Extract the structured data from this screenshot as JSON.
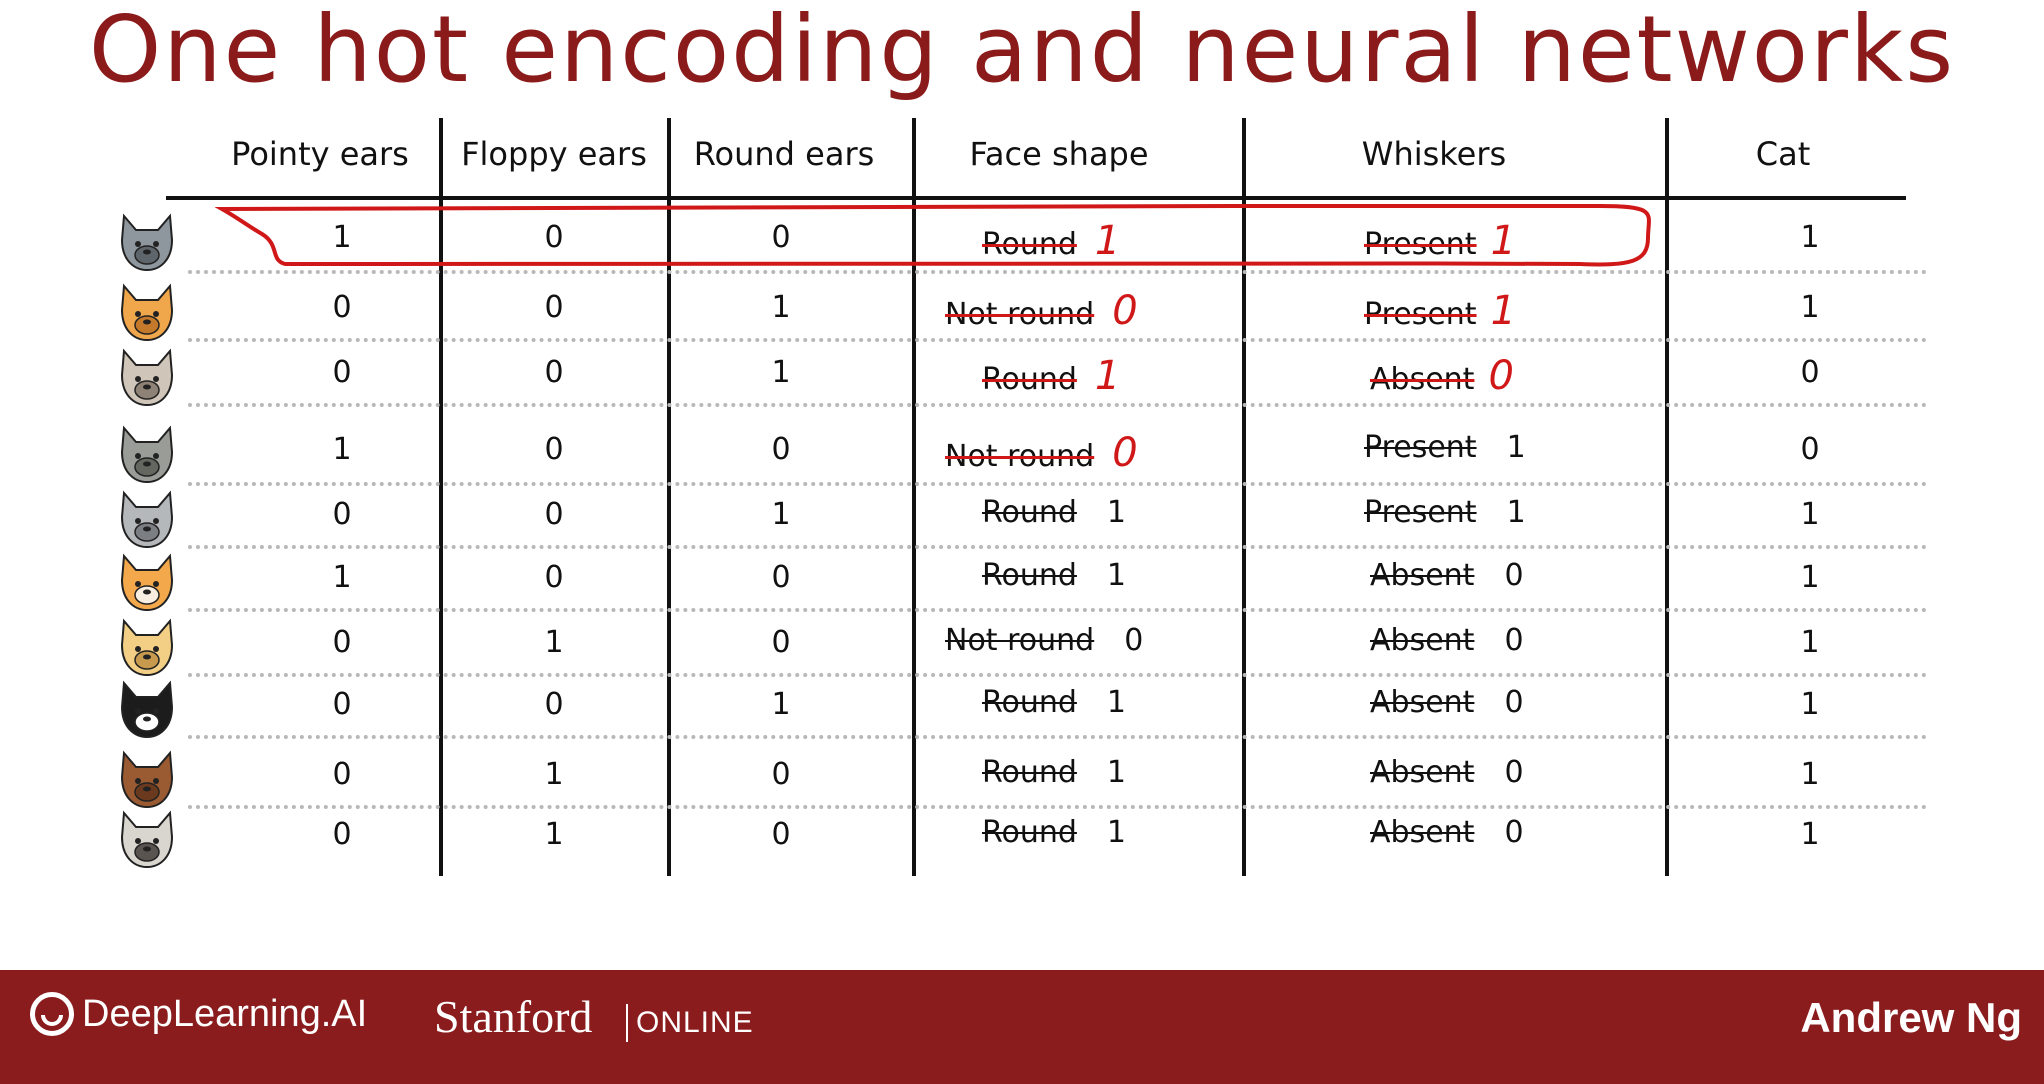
{
  "title": "One hot encoding and neural networks",
  "headers": [
    "Pointy ears",
    "Floppy ears",
    "Round ears",
    "Face shape",
    "Whiskers",
    "Cat"
  ],
  "rows": [
    {
      "animal": "cat-gray-icon",
      "pointy": "1",
      "floppy": "0",
      "round": "0",
      "face": "Round",
      "face_num": "1",
      "face_annot": true,
      "whisk": "Present",
      "whisk_num": "1",
      "whisk_annot": true,
      "cat": "1"
    },
    {
      "animal": "cat-orange-icon",
      "pointy": "0",
      "floppy": "0",
      "round": "1",
      "face": "Not round",
      "face_num": "0",
      "face_annot": true,
      "whisk": "Present",
      "whisk_num": "1",
      "whisk_annot": true,
      "cat": "1"
    },
    {
      "animal": "dog-beige-icon",
      "pointy": "0",
      "floppy": "0",
      "round": "1",
      "face": "Round",
      "face_num": "1",
      "face_annot": true,
      "whisk": "Absent",
      "whisk_num": "0",
      "whisk_annot": true,
      "cat": "0"
    },
    {
      "animal": "wolf-gray-icon",
      "pointy": "1",
      "floppy": "0",
      "round": "0",
      "face": "Not round",
      "face_num": "0",
      "face_annot": true,
      "whisk": "Present",
      "whisk_num": "1",
      "whisk_annot": false,
      "cat": "0"
    },
    {
      "animal": "cat-silver-icon",
      "pointy": "0",
      "floppy": "0",
      "round": "1",
      "face": "Round",
      "face_num": "1",
      "face_annot": false,
      "whisk": "Present",
      "whisk_num": "1",
      "whisk_annot": false,
      "cat": "1"
    },
    {
      "animal": "cat-orange-white-icon",
      "pointy": "1",
      "floppy": "0",
      "round": "0",
      "face": "Round",
      "face_num": "1",
      "face_annot": false,
      "whisk": "Absent",
      "whisk_num": "0",
      "whisk_annot": false,
      "cat": "1"
    },
    {
      "animal": "dog-golden-icon",
      "pointy": "0",
      "floppy": "1",
      "round": "0",
      "face": "Not round",
      "face_num": "0",
      "face_annot": false,
      "whisk": "Absent",
      "whisk_num": "0",
      "whisk_annot": false,
      "cat": "1"
    },
    {
      "animal": "cat-tuxedo-icon",
      "pointy": "0",
      "floppy": "0",
      "round": "1",
      "face": "Round",
      "face_num": "1",
      "face_annot": false,
      "whisk": "Absent",
      "whisk_num": "0",
      "whisk_annot": false,
      "cat": "1"
    },
    {
      "animal": "dog-brown-icon",
      "pointy": "0",
      "floppy": "1",
      "round": "0",
      "face": "Round",
      "face_num": "1",
      "face_annot": false,
      "whisk": "Absent",
      "whisk_num": "0",
      "whisk_annot": false,
      "cat": "1"
    },
    {
      "animal": "dog-pug-icon",
      "pointy": "0",
      "floppy": "1",
      "round": "0",
      "face": "Round",
      "face_num": "1",
      "face_annot": false,
      "whisk": "Absent",
      "whisk_num": "0",
      "whisk_annot": false,
      "cat": "1"
    }
  ],
  "footer": {
    "logo_text": "DeepLearning.AI",
    "logo_icon": "deeplearning-logo-icon",
    "stanford": "Stanford",
    "online": "ONLINE",
    "author": "Andrew Ng"
  },
  "colors": {
    "title": "#8b1a1a",
    "annotation": "#d01818",
    "footer_bg": "#8b1c1e"
  }
}
